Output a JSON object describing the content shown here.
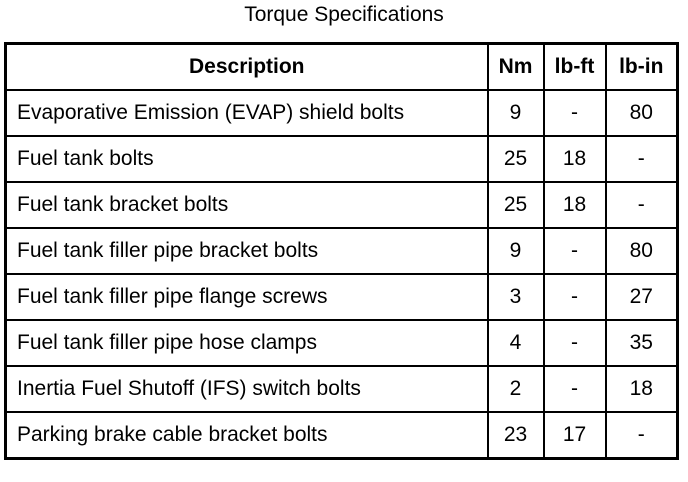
{
  "title": "Torque Specifications",
  "headers": [
    "Description",
    "Nm",
    "lb-ft",
    "lb-in"
  ],
  "rows": [
    [
      "Evaporative Emission (EVAP) shield bolts",
      "9",
      "-",
      "80"
    ],
    [
      "Fuel tank bolts",
      "25",
      "18",
      "-"
    ],
    [
      "Fuel tank bracket bolts",
      "25",
      "18",
      "-"
    ],
    [
      "Fuel tank filler pipe bracket bolts",
      "9",
      "-",
      "80"
    ],
    [
      "Fuel tank filler pipe flange screws",
      "3",
      "-",
      "27"
    ],
    [
      "Fuel tank filler pipe hose clamps",
      "4",
      "-",
      "35"
    ],
    [
      "Inertia Fuel Shutoff (IFS) switch bolts",
      "2",
      "-",
      "18"
    ],
    [
      "Parking brake cable bracket bolts",
      "23",
      "17",
      "-"
    ]
  ]
}
